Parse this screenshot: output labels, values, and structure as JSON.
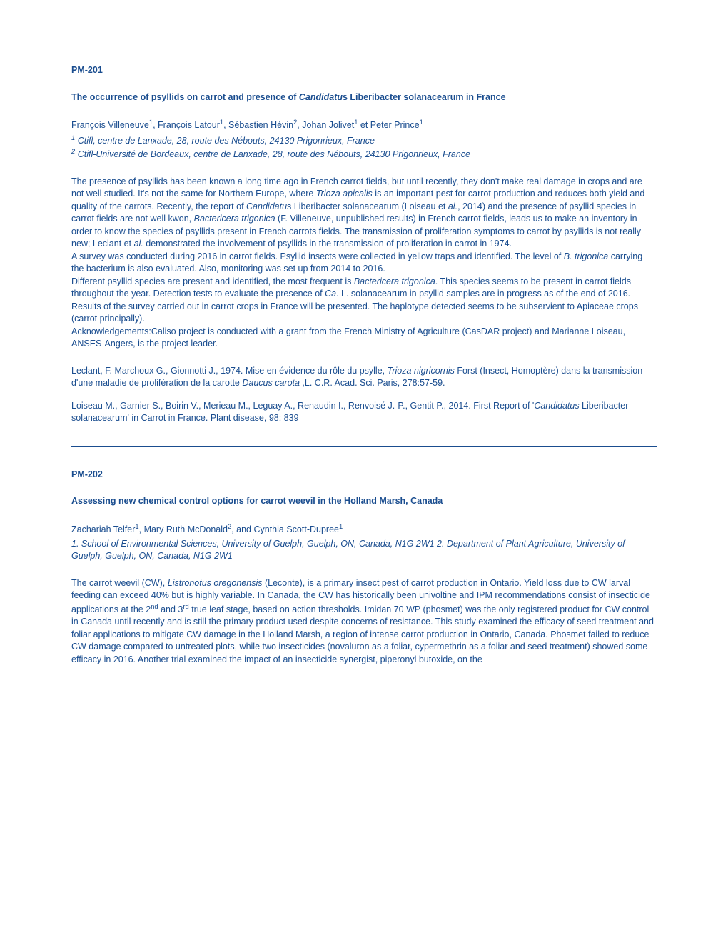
{
  "text_color": "#1a4d8f",
  "background_color": "#ffffff",
  "font_family": "Verdana, Geneva, sans-serif",
  "font_size_pt": 10,
  "abstracts": [
    {
      "id": "PM-201",
      "title_html": "The occurrence of psyllids on carrot and presence of <i>Candidatu</i>s Liberibacter solanacearum in France",
      "authors_html": "François Villeneuve<sup>1</sup>, François Latour<sup>1</sup>, Sébastien Hévin<sup>2</sup>, Johan Jolivet<sup>1</sup> et Peter Prince<sup>1</sup>",
      "affiliations_html": "<sup>1</sup> Ctifl, centre de Lanxade, 28, route des Nébouts, 24130 Prigonrieux, France<br><sup>2</sup> Ctifl-Université de Bordeaux, centre de Lanxade, 28, route des Nébouts, 24130 Prigonrieux, France",
      "body_html": "The presence of psyllids has been known a long time ago in French carrot fields, but until recently, they don't make real damage in crops and are not well studied. It's not the same for Northern Europe, where <i>Trioza apicalis</i> is an important pest for carrot production and reduces both yield and quality of the carrots. Recently, the report of <i>Candidatu</i>s Liberibacter solanacearum (Loiseau et <i>al.</i>, 2014) and the presence of psyllid species in carrot fields are not well kwon, <i>Bactericera trigonica</i> (F. Villeneuve, unpublished results) in French carrot fields, leads us to make an inventory in order to know the species of psyllids present in French carrots fields. The transmission of proliferation symptoms to carrot by psyllids is not really new; Leclant et <i>al.</i> demonstrated the involvement of psyllids in the transmission of proliferation in carrot in 1974.<br>A survey was conducted during 2016 in carrot fields. Psyllid insects were collected in yellow traps and identified. The level of <i>B. trigonica</i> carrying the bacterium is also evaluated. Also, monitoring was set up from 2014 to 2016.<br>Different psyllid species are present and identified, the most frequent is <i>Bactericera trigonica</i>. This species seems to be present in carrot fields throughout the year. Detection tests to evaluate the presence of <i>Ca</i>. L. solanacearum in psyllid samples are in progress as of the end of 2016. Results of the survey carried out in carrot crops in France will be presented. The haplotype detected seems to be subservient to Apiaceae crops (carrot principally).<br>Acknowledgements:Caliso project is conducted with a grant from the French Ministry of Agriculture (CasDAR project) and Marianne Loiseau, ANSES-Angers, is the project leader.",
      "references": [
        "Leclant, F. Marchoux G., Gionnotti J., 1974. Mise en évidence du rôle du psylle, <i>Trioza nigricornis</i> Forst (Insect, Homoptère) dans la transmission d'une maladie de prolifération de la carotte <i>Daucus carota</i> ,L. C.R. Acad. Sci. Paris, 278:57-59.",
        "Loiseau M., Garnier S., Boirin V., Merieau M., Leguay A., Renaudin I., Renvoisé J.-P., Gentit P., 2014. First Report of '<i>Candidatus</i> Liberibacter solanacearum' in Carrot in France. Plant disease, 98: 839"
      ]
    },
    {
      "id": "PM-202",
      "title_html": "Assessing new chemical control options for carrot weevil in the Holland Marsh, Canada",
      "authors_html": "Zachariah Telfer<sup>1</sup>, Mary Ruth McDonald<sup>2</sup>, and Cynthia Scott-Dupree<sup>1</sup>",
      "affiliations_html": "1. School of Environmental Sciences, University of Guelph, Guelph, ON, Canada, N1G 2W1 2. Department of Plant Agriculture, University of Guelph, Guelph, ON, Canada, N1G 2W1",
      "body_html": "The carrot weevil (CW), <i>Listronotus oregonensis</i> (Leconte), is a primary insect pest of carrot production in Ontario. Yield loss due to CW larval feeding can exceed 40% but is highly variable. In Canada, the CW has historically been univoltine and IPM recommendations consist of insecticide applications at the 2<sup>nd</sup> and 3<sup>rd</sup> true leaf stage, based on action thresholds. Imidan 70 WP (phosmet) was the only registered product for CW control in Canada until recently and is still the primary product used despite concerns of resistance. This study examined the efficacy of seed treatment and foliar applications to mitigate CW damage in the Holland Marsh, a region of intense carrot production in Ontario, Canada. Phosmet failed to reduce CW damage compared to untreated plots, while two insecticides (novaluron as a foliar, cypermethrin as a foliar and seed treatment) showed some efficacy in 2016. Another trial examined the impact of an insecticide synergist, piperonyl butoxide, on the",
      "references": []
    }
  ]
}
